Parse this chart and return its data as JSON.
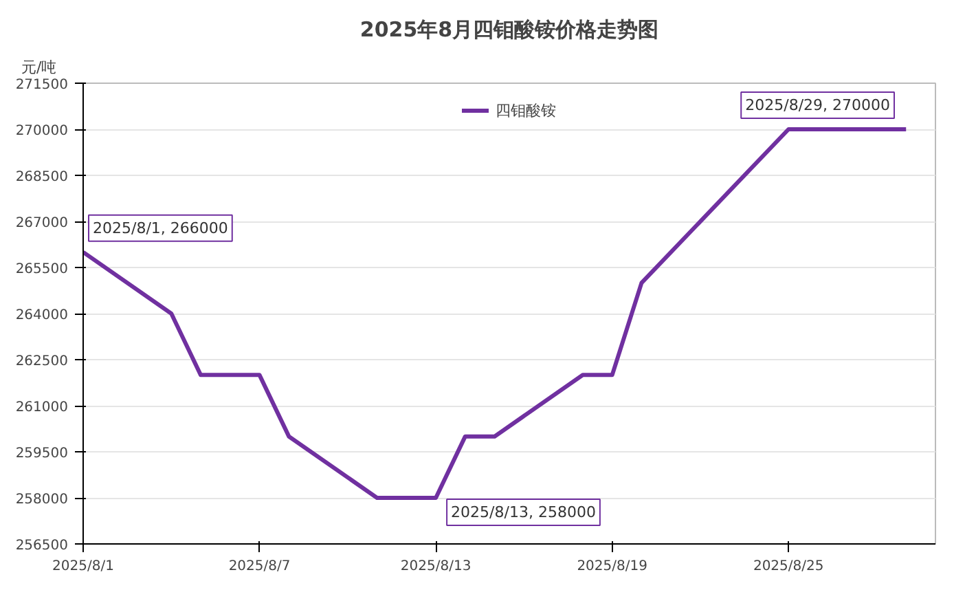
{
  "chart_data": {
    "type": "line",
    "title": "2025年8月四钼酸铵价格走势图",
    "ylabel": "元/吨",
    "x": [
      "2025-08-01",
      "2025-08-04",
      "2025-08-05",
      "2025-08-07",
      "2025-08-08",
      "2025-08-11",
      "2025-08-13",
      "2025-08-14",
      "2025-08-15",
      "2025-08-18",
      "2025-08-19",
      "2025-08-20",
      "2025-08-25",
      "2025-08-29"
    ],
    "series": [
      {
        "name": "四钼酸铵",
        "color": "#7030a0",
        "values": [
          266000,
          264000,
          262000,
          262000,
          260000,
          258000,
          258000,
          260000,
          260000,
          262000,
          262000,
          265000,
          270000,
          270000
        ]
      }
    ],
    "xlim": [
      "2025-08-01",
      "2025-08-30"
    ],
    "xticks": [
      {
        "value": "2025-08-01",
        "label": "2025/8/1"
      },
      {
        "value": "2025-08-07",
        "label": "2025/8/7"
      },
      {
        "value": "2025-08-13",
        "label": "2025/8/13"
      },
      {
        "value": "2025-08-19",
        "label": "2025/8/19"
      },
      {
        "value": "2025-08-25",
        "label": "2025/8/25"
      }
    ],
    "ylim": [
      256500,
      271500
    ],
    "yticks": [
      256500,
      258000,
      259500,
      261000,
      262500,
      264000,
      265500,
      267000,
      268500,
      270000,
      271500
    ],
    "annotations": [
      {
        "text": "2025/8/1, 266000",
        "x": "2025-08-01",
        "y": 266000
      },
      {
        "text": "2025/8/13, 258000",
        "x": "2025-08-13",
        "y": 258000
      },
      {
        "text": "2025/8/29, 270000",
        "x": "2025-08-29",
        "y": 270000
      }
    ],
    "grid": "y",
    "legend": "top",
    "marker": "none",
    "line_style": "solid"
  }
}
